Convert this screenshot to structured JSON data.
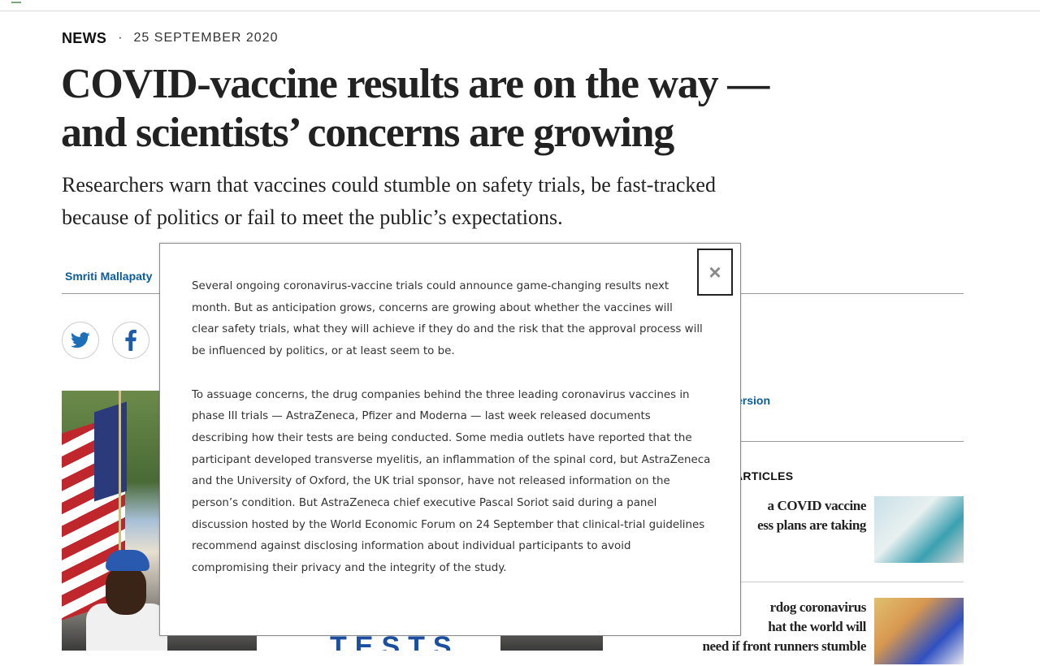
{
  "article": {
    "type": "NEWS",
    "separator": "·",
    "date": "25 SEPTEMBER 2020",
    "title_line1": "COVID-vaccine results are on the way —",
    "title_line2": "and scientists’ concerns are growing",
    "standfirst_line1": "Researchers warn that vaccines could stumble on safety trials, be fast-tracked",
    "standfirst_line2": "because of politics or fail to meet the public’s expectations.",
    "author": "Smriti Mallapaty",
    "hero_sign_text": "TESTS"
  },
  "share": {
    "twitter_icon": "twitter-icon",
    "facebook_icon": "facebook-icon"
  },
  "sidebar": {
    "link_fragment": "ersion",
    "related_heading_fragment": "ARTICLES",
    "related": [
      {
        "line1": "a COVID vaccine",
        "line2": "ess plans are taking"
      },
      {
        "line1": "rdog coronavirus",
        "line2": "hat the world will",
        "line3": "need if front runners stumble"
      }
    ]
  },
  "modal": {
    "close_label": "×",
    "paragraphs": [
      {
        "lines": [
          "Several ongoing coronavirus-vaccine trials could announce game-changing results next",
          "month. But as anticipation grows, concerns are growing about whether the vaccines will",
          "clear safety trials, what they will achieve if they do and the risk that the approval process will",
          "be influenced by politics, or at least seem to be."
        ]
      },
      {
        "lines": [
          "To assuage concerns, the drug companies behind the three leading coronavirus vaccines in",
          "phase III trials — AstraZeneca, Pfizer and Moderna — last week released documents",
          "describing how their tests are being conducted. Some media outlets have reported that the",
          "participant developed transverse myelitis, an inflammation of the spinal cord, but AstraZeneca",
          "and the University of Oxford, the UK trial sponsor, have not released information on the",
          "person’s condition. But AstraZeneca chief executive Pascal Soriot said during a panel",
          "discussion hosted by the World Economic Forum on 24 September that clinical-trial guidelines",
          "recommend against disclosing information about individual participants to avoid",
          "compromising their privacy and the integrity of the study."
        ]
      }
    ]
  },
  "colors": {
    "link_blue": "#0a5c9e",
    "twitter_blue": "#1d6fb8",
    "facebook_blue": "#1d5aa8",
    "close_grey": "#8a8a8a"
  }
}
